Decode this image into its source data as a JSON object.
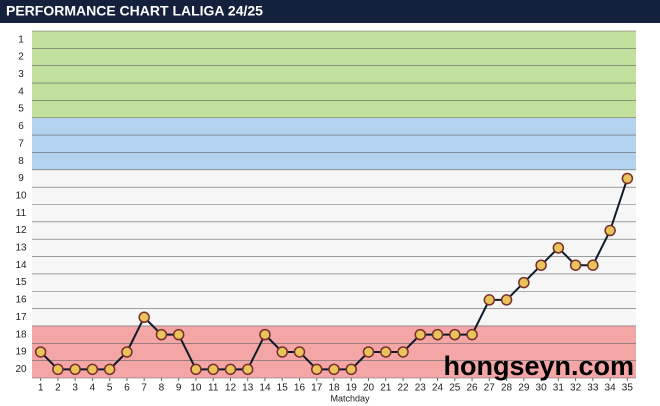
{
  "chart_data": {
    "type": "line",
    "title": "PERFORMANCE CHART LALIGA 24/25",
    "x_label": "Matchday",
    "x": [
      1,
      2,
      3,
      4,
      5,
      6,
      7,
      8,
      9,
      10,
      11,
      12,
      13,
      14,
      15,
      16,
      17,
      18,
      19,
      20,
      21,
      22,
      23,
      24,
      25,
      26,
      27,
      28,
      29,
      30,
      31,
      32,
      33,
      34,
      35
    ],
    "series": [
      {
        "color": "#0d1b2a",
        "values": [
          19,
          20,
          20,
          20,
          20,
          19,
          17,
          18,
          18,
          20,
          20,
          20,
          20,
          18,
          19,
          19,
          20,
          20,
          20,
          19,
          19,
          19,
          18,
          18,
          18,
          18,
          16,
          16,
          15,
          14,
          13,
          14,
          14,
          12,
          9
        ]
      }
    ],
    "xlim": [
      0.5,
      35.5
    ],
    "xticks": [
      1,
      2,
      3,
      4,
      5,
      6,
      7,
      8,
      9,
      10,
      11,
      12,
      13,
      14,
      15,
      16,
      17,
      18,
      19,
      20,
      21,
      22,
      23,
      24,
      25,
      26,
      27,
      28,
      29,
      30,
      31,
      32,
      33,
      34,
      35
    ],
    "ylim": [
      20.5,
      0.5
    ],
    "yticks": [
      1,
      2,
      3,
      4,
      5,
      6,
      7,
      8,
      9,
      10,
      11,
      12,
      13,
      14,
      15,
      16,
      17,
      18,
      19,
      20
    ],
    "zones": [
      {
        "from": 1,
        "to": 5,
        "color": "#c3df9d"
      },
      {
        "from": 6,
        "to": 8,
        "color": "#b2d2ee"
      },
      {
        "from": 18,
        "to": 20,
        "color": "#f4a6a6"
      }
    ],
    "background": "#f6f6f6",
    "watermark": "hongseyn.com"
  }
}
